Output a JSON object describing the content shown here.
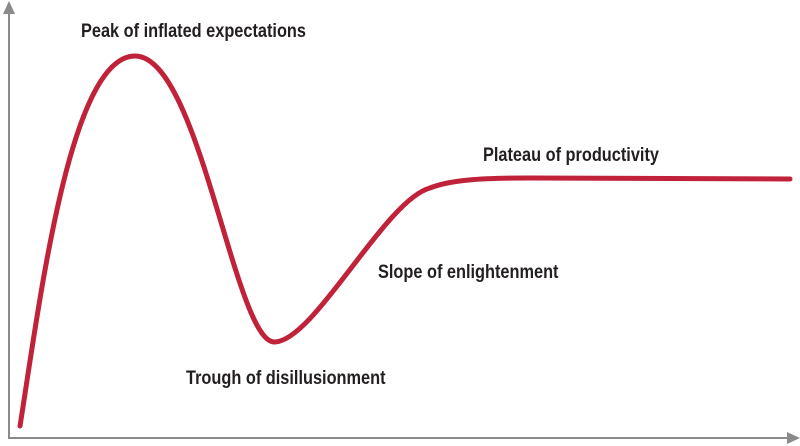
{
  "diagram": {
    "colors": {
      "axis": "#8a8a8a",
      "curve": "#c0223a",
      "text": "#231f20"
    },
    "phases": [
      {
        "id": "peak",
        "label": "Peak of inflated expectations"
      },
      {
        "id": "trough",
        "label": "Trough of disillusionment"
      },
      {
        "id": "slope",
        "label": "Slope of enlightenment"
      },
      {
        "id": "plateau",
        "label": "Plateau of productivity"
      }
    ]
  }
}
